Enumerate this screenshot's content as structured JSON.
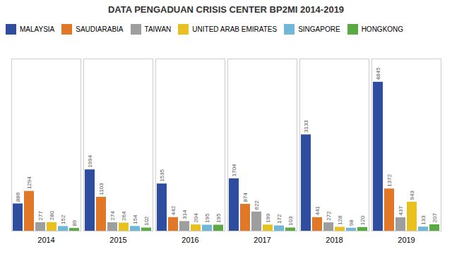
{
  "chart_data": {
    "type": "bar",
    "title": "DATA PENGADUAN CRISIS CENTER BP2MI 2014-2019",
    "categories": [
      "2014",
      "2015",
      "2016",
      "2017",
      "2018",
      "2019"
    ],
    "series": [
      {
        "name": "MALAYSIA",
        "color": "#2e4d9e",
        "values": [
          886,
          1994,
          1535,
          1704,
          3133,
          4845
        ]
      },
      {
        "name": "SAUDIARABIA",
        "color": "#e07828",
        "values": [
          1294,
          1103,
          442,
          874,
          441,
          1372
        ]
      },
      {
        "name": "TAIWAN",
        "color": "#9e9e9e",
        "values": [
          277,
          274,
          314,
          622,
          272,
          437
        ]
      },
      {
        "name": "UNITED ARAB EMIRATES",
        "color": "#e8c020",
        "values": [
          280,
          264,
          204,
          199,
          128,
          943
        ]
      },
      {
        "name": "SINGAPORE",
        "color": "#70b8d8",
        "values": [
          152,
          154,
          195,
          172,
          98,
          133
        ]
      },
      {
        "name": "HONGKONG",
        "color": "#5aaa44",
        "values": [
          89,
          102,
          195,
          103,
          120,
          207
        ]
      }
    ],
    "ylim": [
      0,
      5600
    ],
    "grid": false,
    "legend": "upper left",
    "data_labels": true,
    "tick_labels": "x"
  }
}
